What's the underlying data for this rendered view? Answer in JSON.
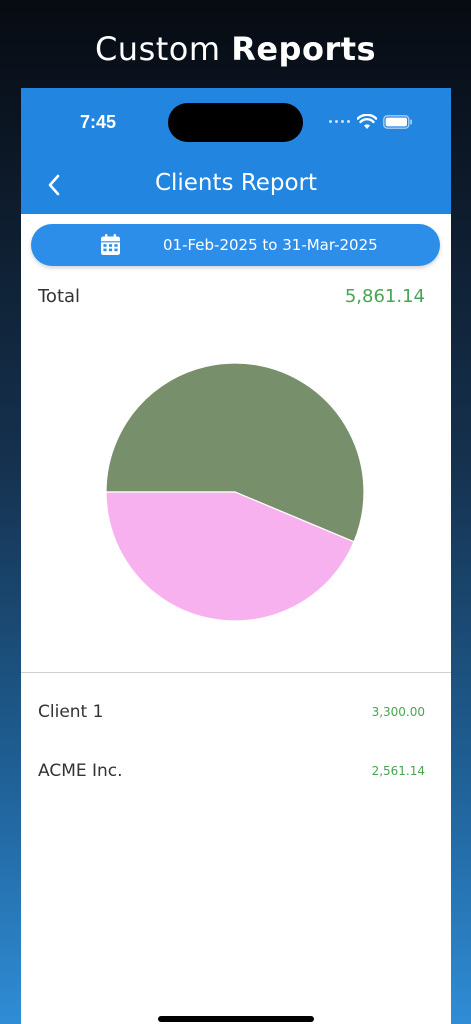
{
  "banner": {
    "title_light": "Custom",
    "title_bold": "Reports"
  },
  "status_bar": {
    "time": "7:45"
  },
  "nav": {
    "title": "Clients Report"
  },
  "date_range": {
    "label": "01-Feb-2025 to 31-Mar-2025"
  },
  "summary": {
    "total_label": "Total",
    "total_value": "5,861.14"
  },
  "colors": {
    "header_blue": "#2286e0",
    "amount_green": "#48a552",
    "slice_client1": "#778f6b",
    "slice_acme": "#f8b1ef"
  },
  "chart_data": {
    "type": "pie",
    "categories": [
      "Client 1",
      "ACME Inc."
    ],
    "values": [
      3300.0,
      2561.14
    ],
    "colors": [
      "#778f6b",
      "#f8b1ef"
    ]
  },
  "clients": [
    {
      "name": "Client 1",
      "amount": "3,300.00"
    },
    {
      "name": "ACME Inc.",
      "amount": "2,561.14"
    }
  ]
}
